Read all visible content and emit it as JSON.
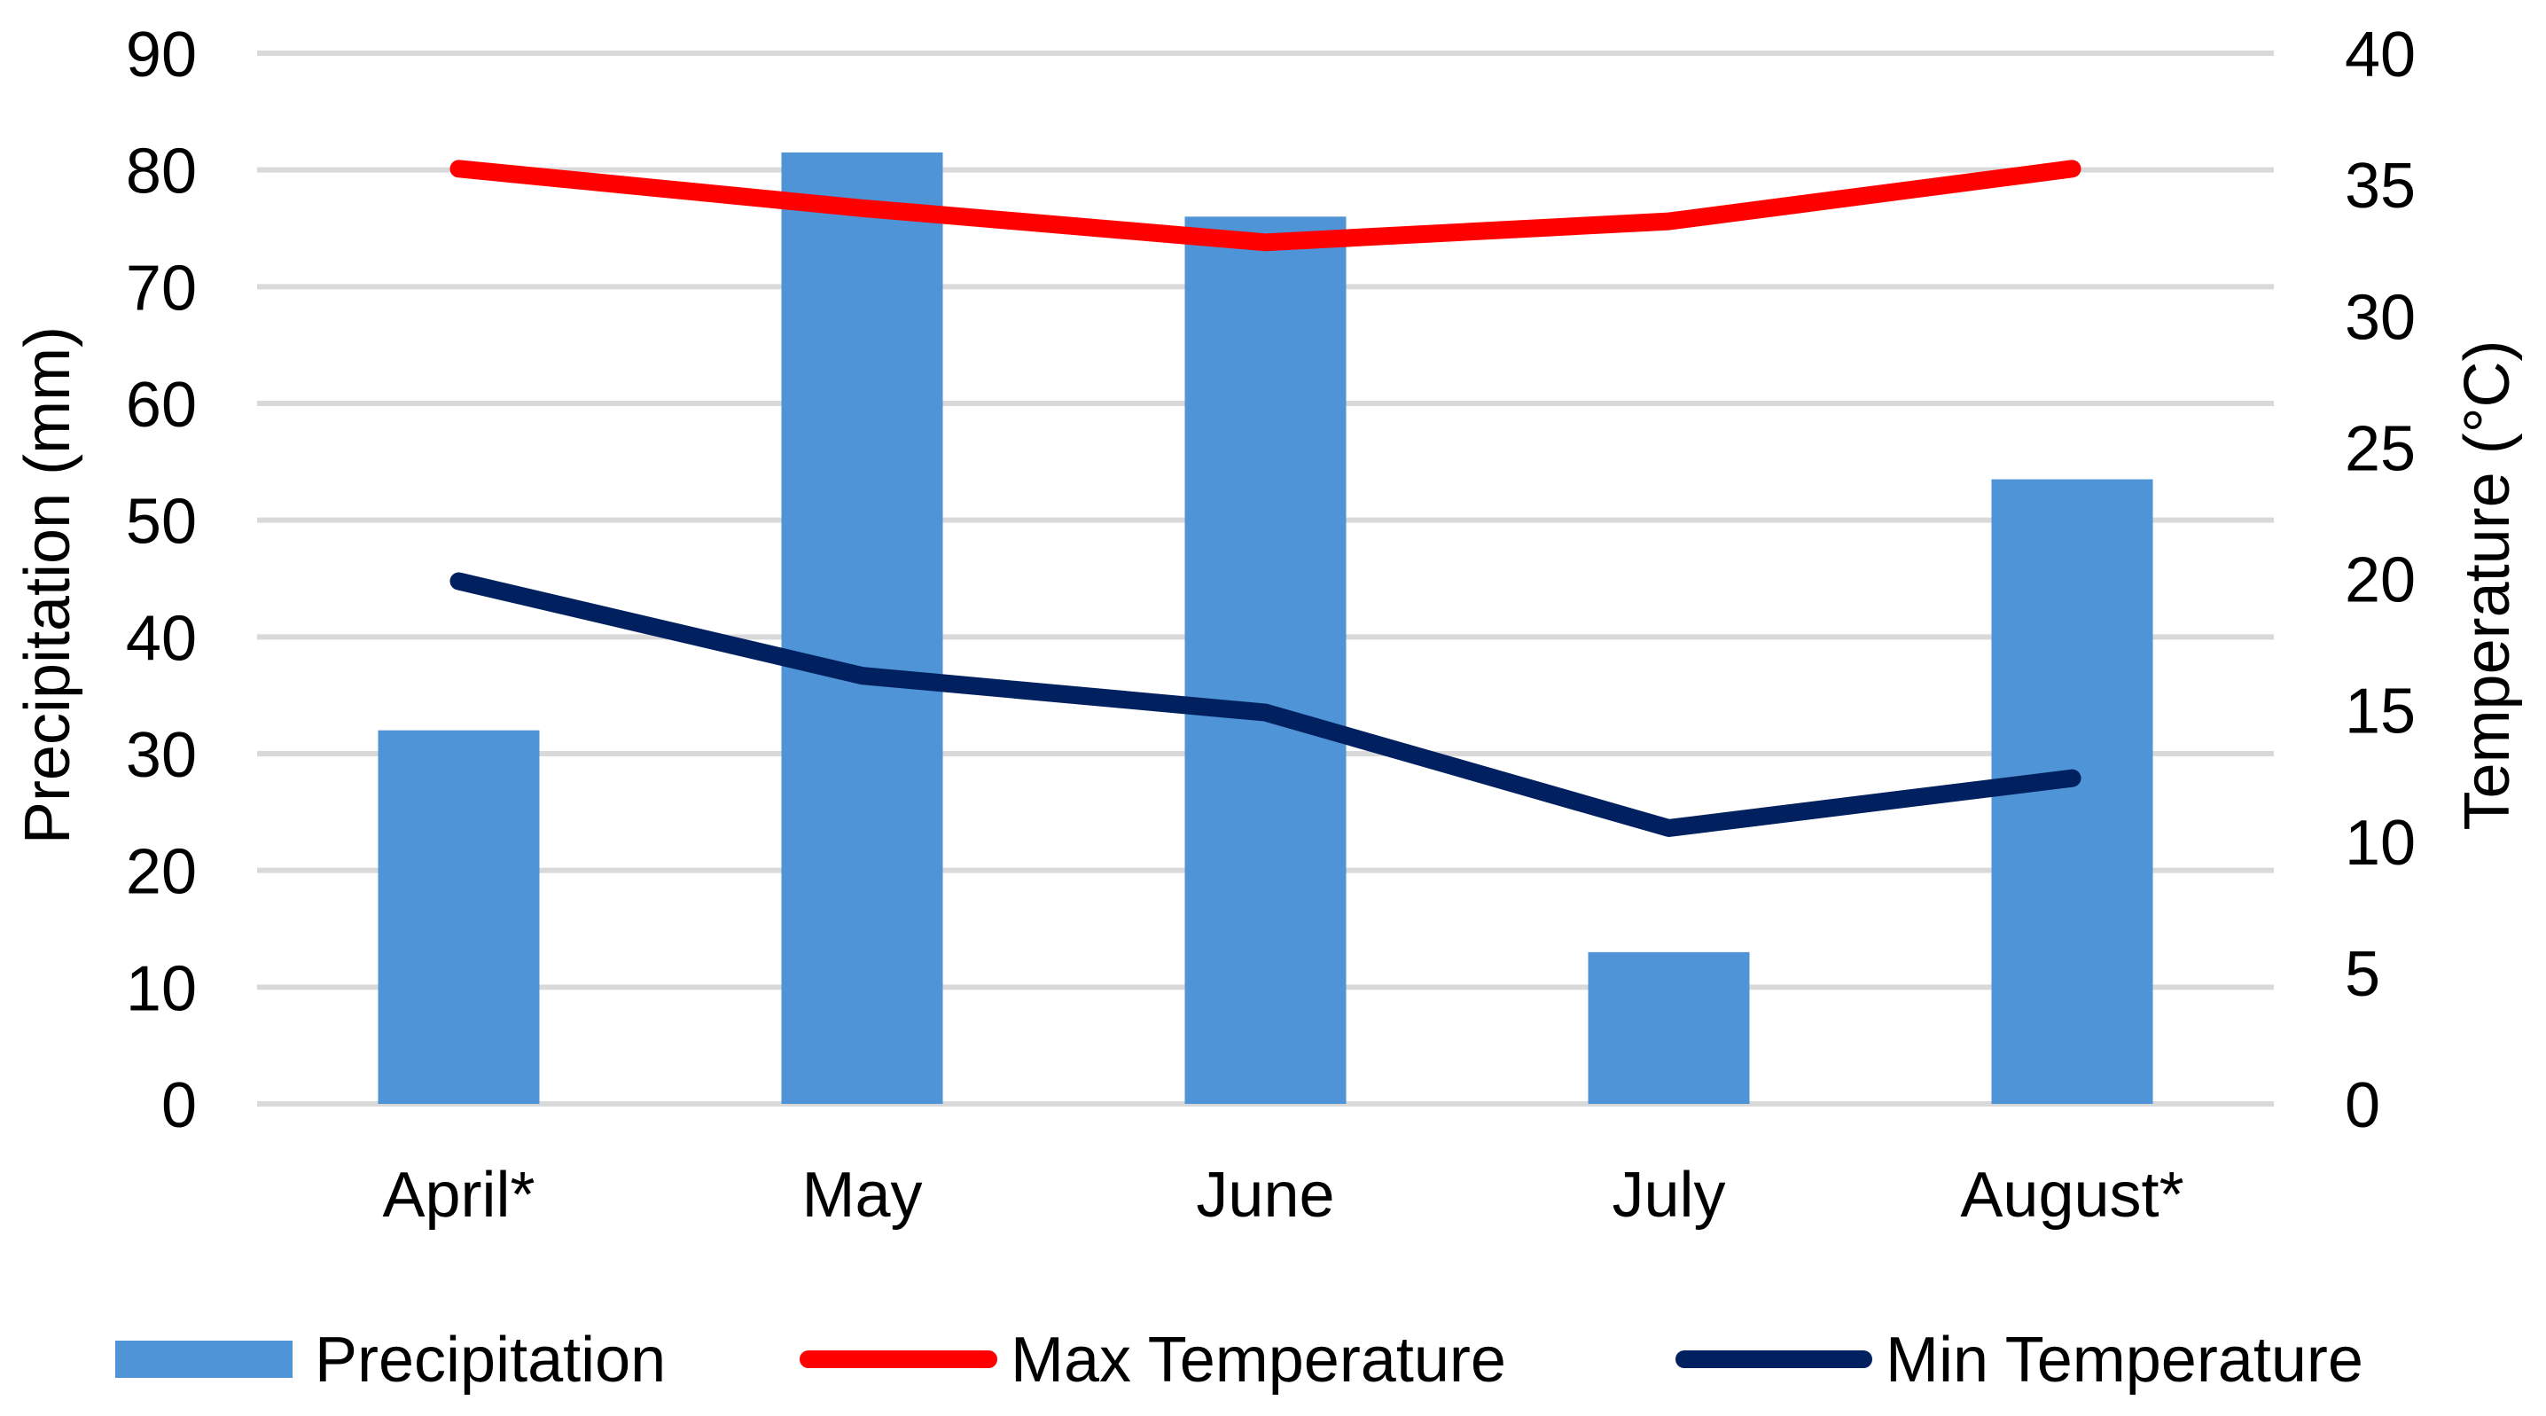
{
  "chart_data": {
    "type": "bar",
    "title": "",
    "categories": [
      "April*",
      "May",
      "June",
      "July",
      "August*"
    ],
    "series": [
      {
        "name": "Precipitation",
        "type": "bar",
        "axis": "left",
        "color": "#4F94D6",
        "values": [
          32,
          81.5,
          76,
          13,
          53.5
        ]
      },
      {
        "name": "Max Temperature",
        "type": "line",
        "axis": "right",
        "color": "#FF0000",
        "values": [
          35.6,
          34.1,
          32.8,
          33.6,
          35.6
        ]
      },
      {
        "name": "Min Temperature",
        "type": "line",
        "axis": "right",
        "color": "#002060",
        "values": [
          19.9,
          16.3,
          14.9,
          10.5,
          12.4
        ]
      }
    ],
    "left_axis": {
      "label": "Precipitation (mm)",
      "ylim": [
        0,
        90
      ],
      "ticks": [
        0,
        10,
        20,
        30,
        40,
        50,
        60,
        70,
        80,
        90
      ]
    },
    "right_axis": {
      "label": "Temperature  (°C)",
      "ylim": [
        0,
        40
      ],
      "ticks": [
        0,
        5,
        10,
        15,
        20,
        25,
        30,
        35,
        40
      ]
    },
    "grid": true,
    "legend_position": "bottom"
  }
}
